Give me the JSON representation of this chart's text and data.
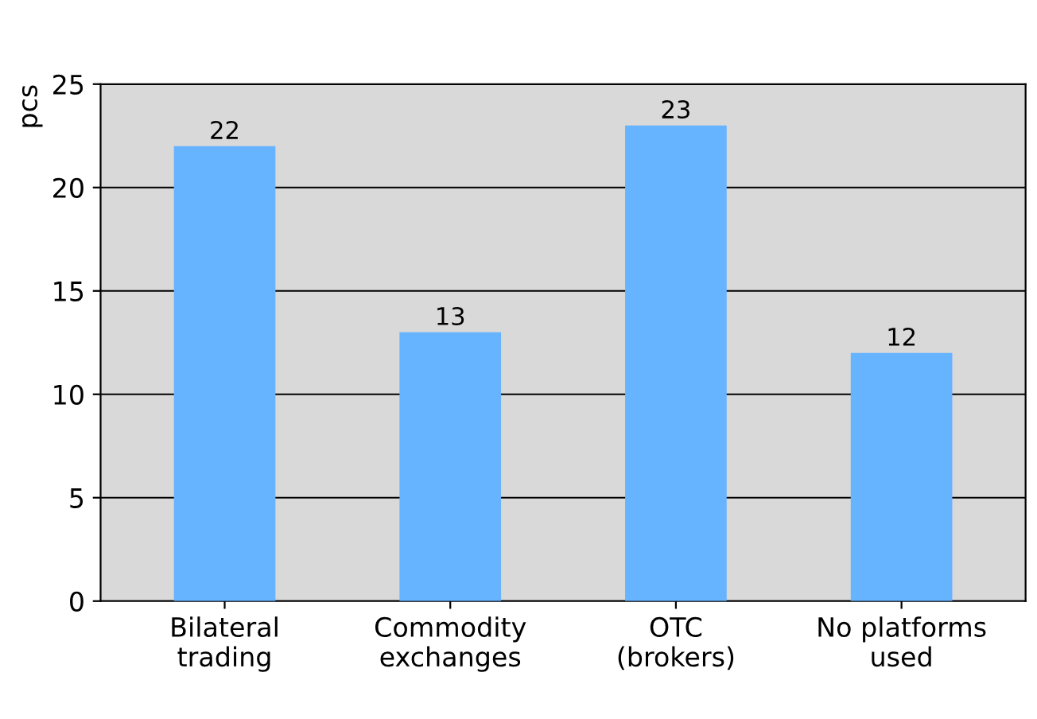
{
  "chart_data": {
    "type": "bar",
    "ylabel": "pcs",
    "categories": [
      "Bilateral\ntrading",
      "Commodity\nexchanges",
      "OTC\n(brokers)",
      "No platforms\nused"
    ],
    "values": [
      22,
      13,
      23,
      12
    ],
    "color": "#66b3ff",
    "ylim": [
      0,
      25
    ],
    "yticks": [
      0,
      5,
      10,
      15,
      20,
      25
    ],
    "grid": "y",
    "data_labels": true
  }
}
